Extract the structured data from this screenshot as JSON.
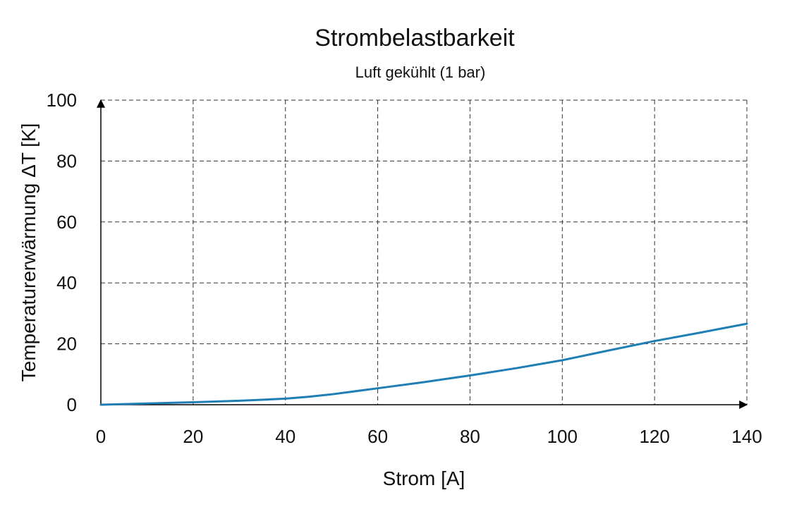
{
  "chart_data": {
    "type": "line",
    "title": "Strombelastbarkeit",
    "subtitle": "Luft gekühlt (1 bar)",
    "xlabel": "Strom [A]",
    "ylabel": "Temperaturerwärmung ΔT [K]",
    "xlim": [
      0,
      140
    ],
    "ylim": [
      0,
      100
    ],
    "xticks": [
      0,
      20,
      40,
      60,
      80,
      100,
      120,
      140
    ],
    "yticks": [
      0,
      20,
      40,
      60,
      80,
      100
    ],
    "grid": true,
    "colors": {
      "series": "#1f7fb5",
      "grid": "#333333",
      "axis": "#000000"
    },
    "series": [
      {
        "x": [
          0,
          10,
          20,
          30,
          40,
          45,
          50,
          60,
          70,
          80,
          90,
          100,
          110,
          120,
          130,
          140
        ],
        "y": [
          0,
          0.4,
          0.8,
          1.3,
          2.0,
          2.6,
          3.4,
          5.4,
          7.4,
          9.6,
          12.0,
          14.6,
          17.8,
          20.9,
          23.7,
          26.6
        ]
      }
    ]
  }
}
